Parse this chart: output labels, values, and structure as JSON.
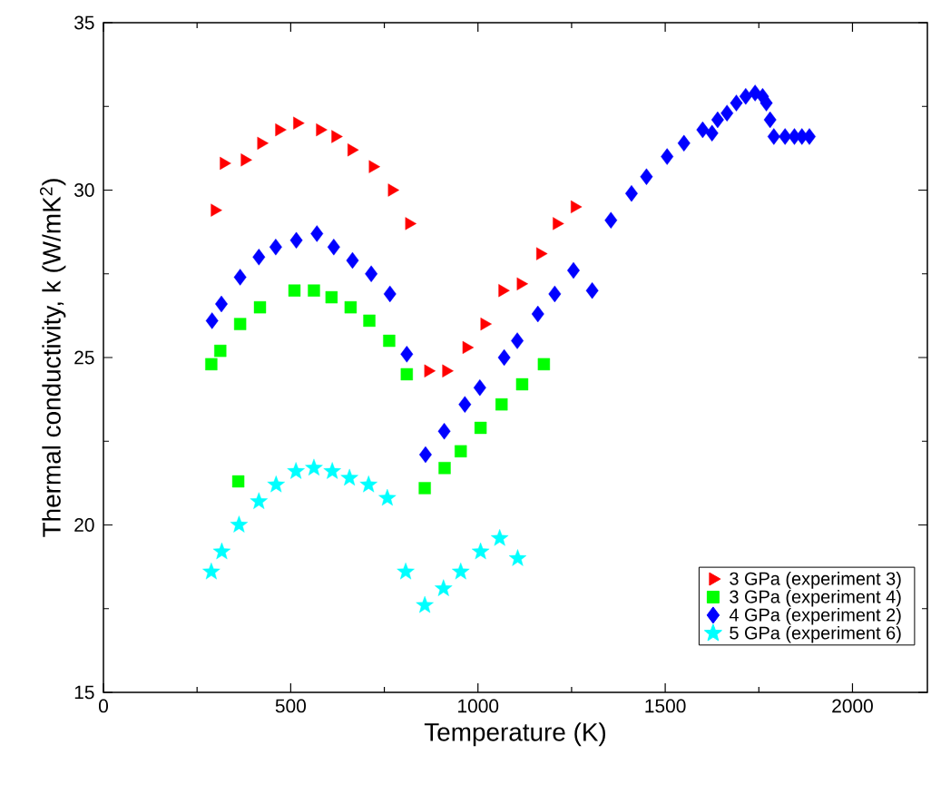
{
  "chart_data": {
    "type": "scatter",
    "xlabel": "Temperature (K)",
    "ylabel": "Thermal conductivity, k (W/mK$^{2}$)",
    "xlim": [
      0,
      2200
    ],
    "ylim": [
      15,
      35
    ],
    "xticks": [
      0,
      500,
      1000,
      1500,
      2000
    ],
    "yticks": [
      15,
      20,
      25,
      30,
      35
    ],
    "legend": "bottom right",
    "grid": false,
    "series": [
      {
        "name": "3 GPa (experiment 3)",
        "color": "#ff0000",
        "marker": "triangle",
        "x": [
          297,
          321,
          377,
          421,
          469,
          517,
          578,
          619,
          662,
          719,
          770,
          816,
          867,
          915,
          969,
          1017,
          1065,
          1114,
          1166,
          1210,
          1258
        ],
        "values": [
          29.4,
          30.8,
          30.9,
          31.4,
          31.8,
          32.0,
          31.8,
          31.6,
          31.2,
          30.7,
          30.0,
          29.0,
          24.6,
          24.6,
          25.3,
          26.0,
          27.0,
          27.2,
          28.1,
          29.0,
          29.5
        ]
      },
      {
        "name": "3 GPa (experiment 4)",
        "color": "#00ff00",
        "marker": "square",
        "x": [
          288,
          312,
          360,
          365,
          418,
          510,
          562,
          609,
          660,
          710,
          763,
          810,
          858,
          911,
          954,
          1007,
          1063,
          1118,
          1176
        ],
        "values": [
          24.8,
          25.2,
          21.3,
          26.0,
          26.5,
          27.0,
          27.0,
          26.8,
          26.5,
          26.1,
          25.5,
          24.5,
          21.1,
          21.7,
          22.2,
          22.9,
          23.6,
          24.2,
          24.8
        ]
      },
      {
        "name": "4 GPa (experiment 2)",
        "color": "#0000ff",
        "marker": "diamond",
        "x": [
          290,
          315,
          365,
          415,
          460,
          515,
          570,
          615,
          665,
          715,
          765,
          810,
          860,
          910,
          965,
          1005,
          1070,
          1105,
          1160,
          1205,
          1255,
          1305,
          1355,
          1410,
          1450,
          1505,
          1550,
          1600,
          1625,
          1640,
          1665,
          1690,
          1715,
          1740,
          1760,
          1770,
          1780,
          1790,
          1820,
          1845,
          1865,
          1885
        ],
        "values": [
          26.1,
          26.6,
          27.4,
          28.0,
          28.3,
          28.5,
          28.7,
          28.3,
          27.9,
          27.5,
          26.9,
          25.1,
          22.1,
          22.8,
          23.6,
          24.1,
          25.0,
          25.5,
          26.3,
          26.9,
          27.6,
          27.0,
          29.1,
          29.9,
          30.4,
          31.0,
          31.4,
          31.8,
          31.7,
          32.1,
          32.3,
          32.6,
          32.8,
          32.9,
          32.8,
          32.6,
          32.1,
          31.6,
          31.6,
          31.6,
          31.6,
          31.6
        ]
      },
      {
        "name": "5 GPa (experiment 6)",
        "color": "#00ffff",
        "marker": "star",
        "x": [
          288,
          316,
          362,
          415,
          461,
          514,
          562,
          611,
          657,
          708,
          758,
          807,
          858,
          908,
          954,
          1007,
          1058,
          1106
        ],
        "values": [
          18.6,
          19.2,
          20.0,
          20.7,
          21.2,
          21.6,
          21.7,
          21.6,
          21.4,
          21.2,
          20.8,
          18.6,
          17.6,
          18.1,
          18.6,
          19.2,
          19.6,
          19.0
        ]
      }
    ]
  }
}
